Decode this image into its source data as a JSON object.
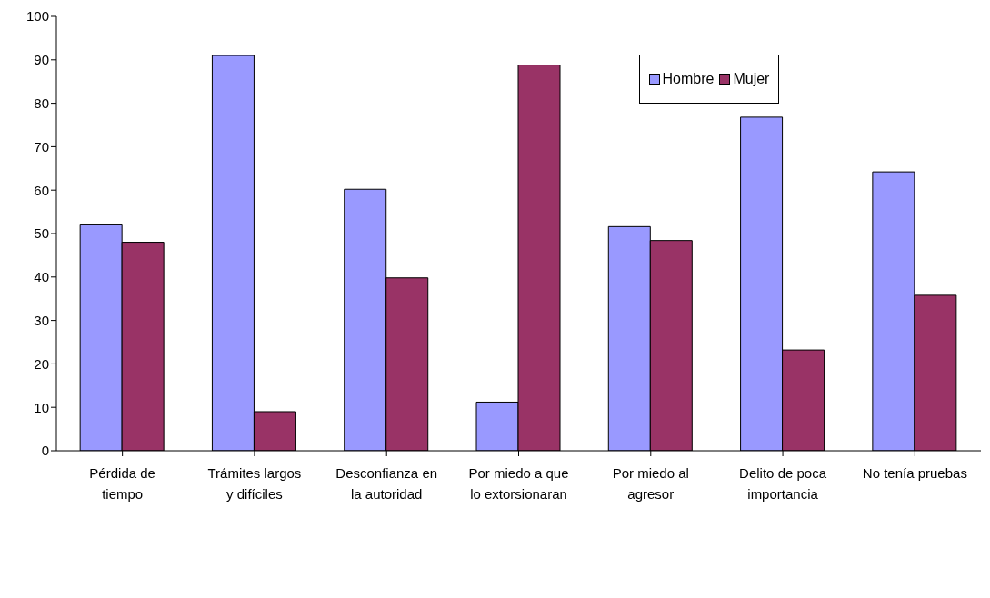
{
  "chart_data": {
    "type": "bar",
    "categories": [
      "Pérdida de tiempo",
      "Trámites largos y difíciles",
      "Desconfianza en la autoridad",
      "Por miedo a que lo extorsionaran",
      "Por miedo al agresor",
      "Delito de poca importancia",
      "No tenía pruebas"
    ],
    "series": [
      {
        "name": "Hombre",
        "color": "#9999ff",
        "values": [
          52,
          91,
          60.2,
          11.2,
          51.6,
          76.8,
          64.2
        ]
      },
      {
        "name": "Mujer",
        "color": "#993366",
        "values": [
          48,
          9,
          39.8,
          88.8,
          48.4,
          23.2,
          35.8
        ]
      }
    ],
    "ylim": [
      0,
      100
    ],
    "yticks": [
      0,
      10,
      20,
      30,
      40,
      50,
      60,
      70,
      80,
      90,
      100
    ],
    "grid": false,
    "legend": "top right"
  }
}
